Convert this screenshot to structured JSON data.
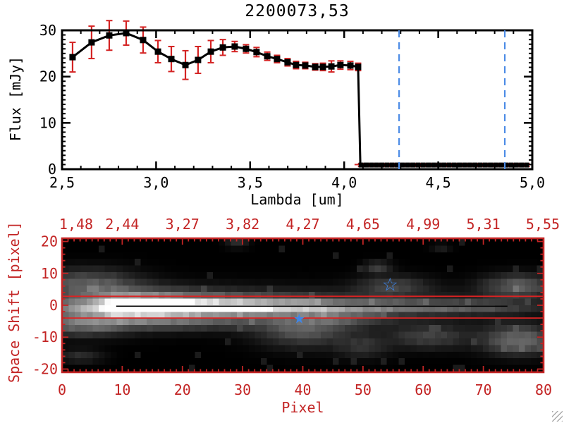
{
  "colors": {
    "black": "#000000",
    "error_red": "#d42424",
    "panel_red": "#c32424",
    "image_line_red": "#dd2222",
    "dashed_blue": "#4d8ce6",
    "star_blue": "#3f86e8",
    "grip_gray": "#ababab"
  },
  "icons": {
    "resize_grip": "window-resize-grip-icon"
  },
  "chart_data": [
    {
      "type": "line",
      "title": "2200073,53",
      "xlabel": "Lambda [um]",
      "ylabel": "Flux [mJy]",
      "xlim": [
        2.5,
        5.0
      ],
      "ylim": [
        0,
        30
      ],
      "x_major_ticks": [
        2.5,
        3.0,
        3.5,
        4.0,
        4.5,
        5.0
      ],
      "x_tick_labels": [
        "2,5",
        "3,0",
        "3,5",
        "4,0",
        "4,5",
        "5,0"
      ],
      "x_minor_step": 0.1,
      "y_major_ticks": [
        0,
        10,
        20,
        30
      ],
      "y_tick_labels": [
        "0",
        "10",
        "20",
        "30"
      ],
      "y_minor_step": 1,
      "marker": "filled-square",
      "points": [
        {
          "x": 2.556,
          "y": 24.2,
          "e": 3.2
        },
        {
          "x": 2.657,
          "y": 27.4,
          "e": 3.5
        },
        {
          "x": 2.751,
          "y": 28.9,
          "e": 3.2
        },
        {
          "x": 2.841,
          "y": 29.4,
          "e": 2.6
        },
        {
          "x": 2.931,
          "y": 27.9,
          "e": 2.8
        },
        {
          "x": 3.01,
          "y": 25.4,
          "e": 2.4
        },
        {
          "x": 3.081,
          "y": 23.8,
          "e": 2.7
        },
        {
          "x": 3.156,
          "y": 22.5,
          "e": 3.1
        },
        {
          "x": 3.223,
          "y": 23.6,
          "e": 2.9
        },
        {
          "x": 3.291,
          "y": 25.4,
          "e": 2.4
        },
        {
          "x": 3.355,
          "y": 26.3,
          "e": 1.7
        },
        {
          "x": 3.418,
          "y": 26.5,
          "e": 1.1
        },
        {
          "x": 3.478,
          "y": 26.0,
          "e": 0.9
        },
        {
          "x": 3.534,
          "y": 25.3,
          "e": 1.0
        },
        {
          "x": 3.591,
          "y": 24.4,
          "e": 0.9
        },
        {
          "x": 3.643,
          "y": 23.8,
          "e": 0.8
        },
        {
          "x": 3.699,
          "y": 23.1,
          "e": 0.8
        },
        {
          "x": 3.744,
          "y": 22.5,
          "e": 0.8
        },
        {
          "x": 3.793,
          "y": 22.4,
          "e": 0.7
        },
        {
          "x": 3.846,
          "y": 22.1,
          "e": 0.7
        },
        {
          "x": 3.887,
          "y": 22.1,
          "e": 0.8
        },
        {
          "x": 3.932,
          "y": 22.2,
          "e": 1.2
        },
        {
          "x": 3.98,
          "y": 22.5,
          "e": 0.9
        },
        {
          "x": 4.033,
          "y": 22.4,
          "e": 0.9
        },
        {
          "x": 4.074,
          "y": 22.1,
          "e": 0.8
        }
      ],
      "zero_tail": {
        "x_start": 4.09,
        "x_end": 4.97,
        "n": 33,
        "y": 0.9,
        "e": 0.3
      },
      "red_dashed_hline": {
        "y": 1.0,
        "x_start": 4.055,
        "x_end": 5.0
      },
      "blue_dashed_vlines": [
        4.292,
        4.854
      ]
    },
    {
      "type": "heatmap",
      "xlabel": "Pixel",
      "ylabel": "Space Shift [pixel]",
      "xlim": [
        0,
        80
      ],
      "ylim": [
        -21,
        21
      ],
      "x_major_ticks": [
        0,
        10,
        20,
        30,
        40,
        50,
        60,
        70,
        80
      ],
      "x_tick_labels": [
        "0",
        "10",
        "20",
        "30",
        "40",
        "50",
        "60",
        "70",
        "80"
      ],
      "x_minor_step": 1,
      "y_major_ticks": [
        20,
        10,
        0,
        -10,
        -20
      ],
      "y_tick_labels": [
        "20",
        "10",
        "0",
        "-10",
        "-20"
      ],
      "y_minor_step": 2,
      "top_axis_label_positions": [
        0,
        10,
        20,
        30,
        40,
        50,
        60,
        70,
        80
      ],
      "top_axis_labels": [
        "1,48",
        "2,44",
        "3,27",
        "3,82",
        "4,27",
        "4,65",
        "4,99",
        "5,31",
        "5,55"
      ],
      "grid": [
        80,
        20
      ],
      "trace": {
        "y_center": -0.5,
        "sigma_core": 1.3,
        "sigma_halo": 3.6,
        "halo_frac": 0.38,
        "profile": [
          [
            0,
            0.16
          ],
          [
            5,
            0.22
          ],
          [
            7,
            0.55
          ],
          [
            9,
            0.95
          ],
          [
            14,
            1.0
          ],
          [
            18,
            0.9
          ],
          [
            24,
            0.75
          ],
          [
            30,
            0.63
          ],
          [
            36,
            0.55
          ],
          [
            42,
            0.47
          ],
          [
            48,
            0.36
          ],
          [
            54,
            0.32
          ],
          [
            60,
            0.29
          ],
          [
            66,
            0.24
          ],
          [
            72,
            0.19
          ],
          [
            76,
            0.12
          ],
          [
            80,
            0.07
          ]
        ]
      },
      "blobs": [
        [
          10,
          -0.5,
          8,
          3.3,
          0.38
        ],
        [
          25,
          -0.5,
          12,
          2.8,
          0.22
        ],
        [
          4,
          7,
          5.5,
          3,
          0.28
        ],
        [
          3,
          -6,
          5,
          2.5,
          0.3
        ],
        [
          20,
          -5.5,
          12,
          1.8,
          0.13
        ],
        [
          40,
          -8,
          5,
          3.5,
          0.26
        ],
        [
          47,
          -4,
          5,
          2,
          0.18
        ],
        [
          50,
          -13,
          3,
          2.5,
          0.14
        ],
        [
          61,
          -10,
          4.5,
          2.5,
          0.2
        ],
        [
          55,
          6,
          4,
          2.2,
          0.2
        ],
        [
          76,
          6,
          4,
          2.5,
          0.3
        ],
        [
          76,
          -11,
          4,
          3,
          0.36
        ],
        [
          3,
          -16,
          2.5,
          1.5,
          0.13
        ],
        [
          52.5,
          12,
          1.5,
          1.2,
          0.2
        ],
        [
          29,
          19.5,
          1.2,
          0.9,
          0.15
        ],
        [
          63,
          18.5,
          1,
          0.8,
          0.1
        ]
      ],
      "aperture_hlines": [
        2.8,
        -4.0
      ],
      "trace_centerline": {
        "y": -0.3,
        "x_start": 9,
        "x_end": 74
      },
      "stars": [
        {
          "x": 39.4,
          "y": -3.9,
          "style": "filled"
        },
        {
          "x": 54.5,
          "y": 6.3,
          "style": "open"
        }
      ]
    }
  ]
}
